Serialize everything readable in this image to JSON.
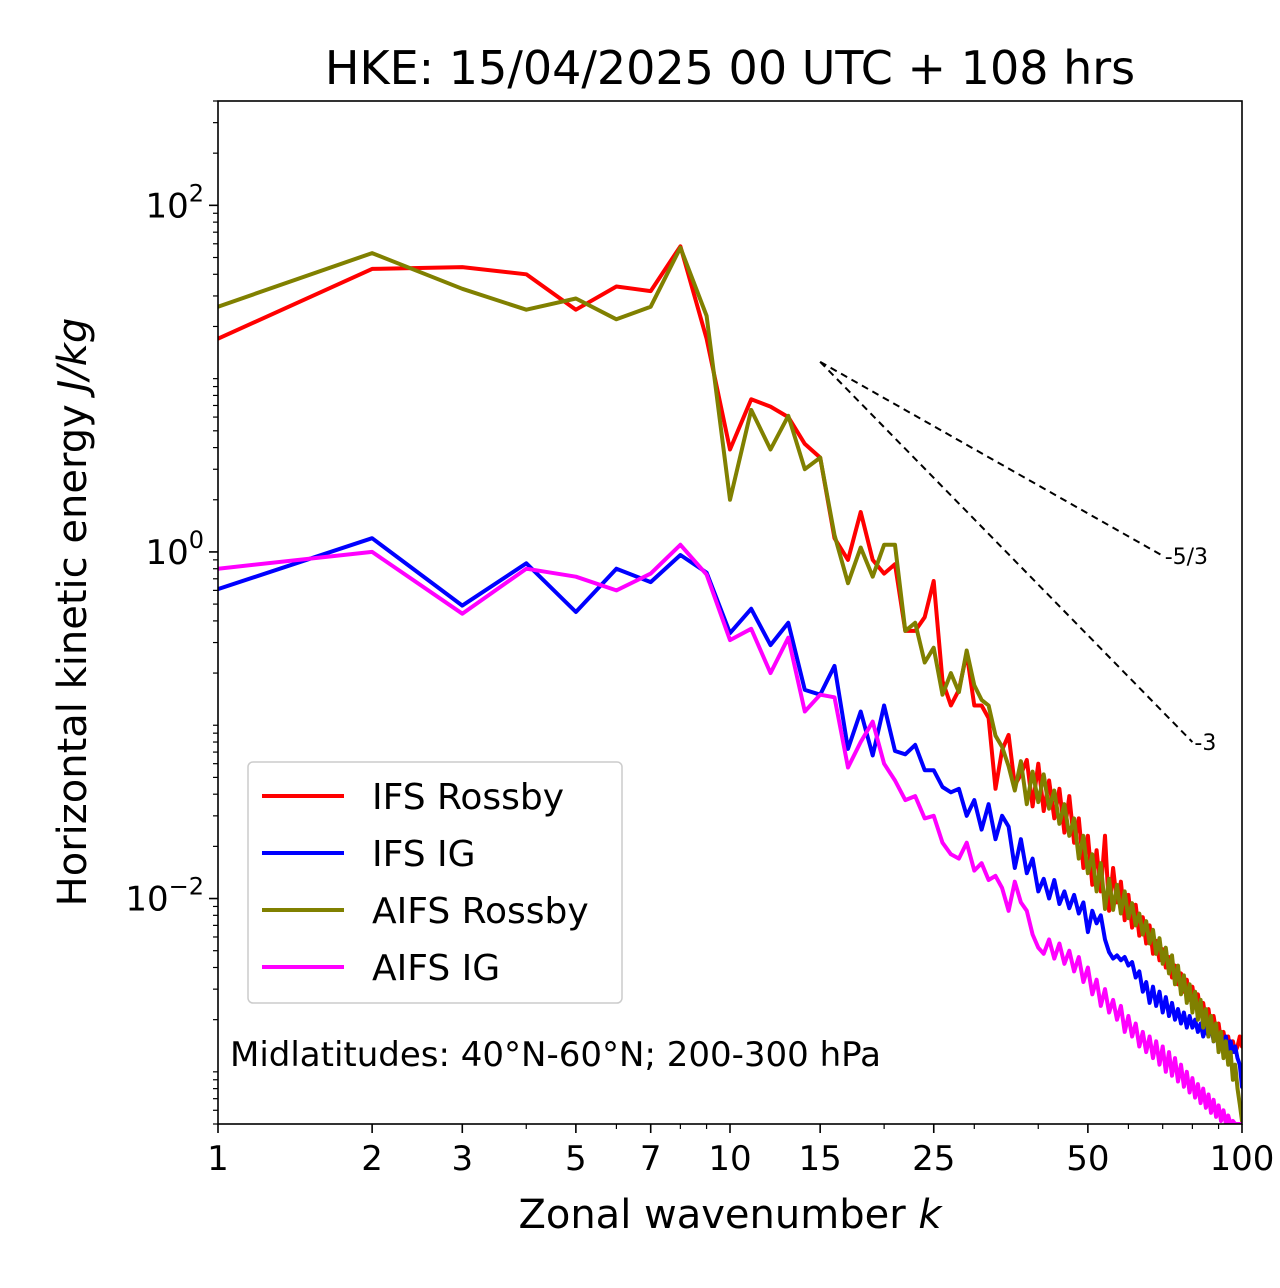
{
  "chart_data": {
    "type": "line",
    "title": "HKE: 15/04/2025 00 UTC + 108 hrs",
    "xlabel": "Zonal wavenumber k",
    "xlabel_prefix": "Zonal wavenumber ",
    "xlabel_var": "k",
    "ylabel": "Horizontal kinetic energy J/kg",
    "ylabel_prefix": "Horizontal kinetic energy ",
    "ylabel_unit": "J/kg",
    "xscale": "log",
    "yscale": "log",
    "xlim": [
      1,
      100
    ],
    "ylim": [
      0.0005,
      400
    ],
    "xticks": [
      1,
      2,
      3,
      5,
      7,
      10,
      15,
      25,
      50,
      100
    ],
    "xtick_labels": [
      "1",
      "2",
      "3",
      "5",
      "7",
      "10",
      "15",
      "25",
      "50",
      "100"
    ],
    "yticks": [
      0.01,
      1,
      100
    ],
    "ytick_labels": [
      {
        "base": "10",
        "exp": "−2"
      },
      {
        "base": "10",
        "exp": "0"
      },
      {
        "base": "10",
        "exp": "2"
      }
    ],
    "grid": false,
    "legend_position": "lower-left",
    "annotation": "Midlatitudes: 40°N-60°N; 200-300 hPa",
    "reference_lines": [
      {
        "label": "-5/3",
        "x": [
          15,
          70
        ],
        "y": [
          12.5,
          0.95
        ]
      },
      {
        "label": "-3",
        "x": [
          15,
          80
        ],
        "y": [
          12.5,
          0.08
        ]
      }
    ],
    "series": [
      {
        "name": "IFS Rossby",
        "color": "#ff0000",
        "x": [
          1,
          2,
          3,
          4,
          5,
          6,
          7,
          8,
          9,
          10,
          11,
          12,
          13,
          14,
          15,
          16,
          17,
          18,
          19,
          20,
          21,
          22,
          23,
          24,
          25,
          26,
          27,
          28,
          29,
          30,
          31,
          32,
          33,
          34,
          35,
          36,
          37,
          38,
          39,
          40,
          41,
          42,
          43,
          44,
          45,
          46,
          47,
          48,
          49,
          50,
          51,
          52,
          53,
          54,
          55,
          56,
          57,
          58,
          59,
          60,
          61,
          62,
          63,
          64,
          65,
          66,
          67,
          68,
          69,
          70,
          71,
          72,
          73,
          74,
          75,
          76,
          77,
          78,
          79,
          80,
          81,
          82,
          83,
          84,
          85,
          86,
          87,
          88,
          89,
          90,
          91,
          92,
          93,
          94,
          95,
          96,
          97,
          98,
          99,
          100
        ],
        "y": [
          17,
          43,
          44,
          40,
          25,
          34,
          32,
          58,
          17,
          3.9,
          7.6,
          6.9,
          6.0,
          4.2,
          3.5,
          1.2,
          0.9,
          1.7,
          0.9,
          0.75,
          0.85,
          0.35,
          0.35,
          0.42,
          0.68,
          0.18,
          0.13,
          0.16,
          0.26,
          0.13,
          0.13,
          0.11,
          0.043,
          0.072,
          0.088,
          0.045,
          0.052,
          0.063,
          0.034,
          0.06,
          0.032,
          0.048,
          0.029,
          0.043,
          0.024,
          0.039,
          0.021,
          0.029,
          0.015,
          0.023,
          0.012,
          0.019,
          0.011,
          0.023,
          0.0085,
          0.015,
          0.0095,
          0.0125,
          0.0075,
          0.0105,
          0.0068,
          0.0092,
          0.0061,
          0.0078,
          0.0055,
          0.007,
          0.0048,
          0.0057,
          0.0044,
          0.0051,
          0.004,
          0.0046,
          0.0035,
          0.0041,
          0.0032,
          0.0037,
          0.0029,
          0.0034,
          0.0026,
          0.0031,
          0.0024,
          0.0028,
          0.0022,
          0.0025,
          0.002,
          0.0023,
          0.0018,
          0.0021,
          0.0017,
          0.0019,
          0.0015,
          0.0017,
          0.0014,
          0.0016,
          0.0013,
          0.0015,
          0.0013,
          0.0014,
          0.0016,
          0.0014
        ]
      },
      {
        "name": "IFS IG",
        "color": "#0000ff",
        "x": [
          1,
          2,
          3,
          4,
          5,
          6,
          7,
          8,
          9,
          10,
          11,
          12,
          13,
          14,
          15,
          16,
          17,
          18,
          19,
          20,
          21,
          22,
          23,
          24,
          25,
          26,
          27,
          28,
          29,
          30,
          31,
          32,
          33,
          34,
          35,
          36,
          37,
          38,
          39,
          40,
          41,
          42,
          43,
          44,
          45,
          46,
          47,
          48,
          49,
          50,
          51,
          52,
          53,
          54,
          55,
          56,
          57,
          58,
          59,
          60,
          61,
          62,
          63,
          64,
          65,
          66,
          67,
          68,
          69,
          70,
          71,
          72,
          73,
          74,
          75,
          76,
          77,
          78,
          79,
          80,
          81,
          82,
          83,
          84,
          85,
          86,
          87,
          88,
          89,
          90,
          91,
          92,
          93,
          94,
          95,
          96,
          97,
          98,
          99,
          100
        ],
        "y": [
          0.61,
          1.2,
          0.49,
          0.86,
          0.45,
          0.8,
          0.67,
          0.96,
          0.76,
          0.34,
          0.47,
          0.29,
          0.39,
          0.16,
          0.15,
          0.22,
          0.073,
          0.12,
          0.067,
          0.13,
          0.071,
          0.068,
          0.077,
          0.055,
          0.055,
          0.044,
          0.041,
          0.043,
          0.03,
          0.037,
          0.025,
          0.035,
          0.022,
          0.03,
          0.026,
          0.015,
          0.022,
          0.014,
          0.017,
          0.011,
          0.013,
          0.01,
          0.0128,
          0.0093,
          0.011,
          0.0088,
          0.0105,
          0.0082,
          0.0095,
          0.0064,
          0.0085,
          0.0072,
          0.008,
          0.0058,
          0.0049,
          0.0045,
          0.0047,
          0.0044,
          0.0046,
          0.0041,
          0.0043,
          0.0035,
          0.0038,
          0.0029,
          0.0033,
          0.0025,
          0.0031,
          0.0024,
          0.0029,
          0.0022,
          0.0027,
          0.0021,
          0.0025,
          0.002,
          0.0023,
          0.0019,
          0.0022,
          0.0018,
          0.0021,
          0.0018,
          0.002,
          0.0017,
          0.0019,
          0.0016,
          0.0018,
          0.0016,
          0.0019,
          0.0015,
          0.0017,
          0.0014,
          0.0016,
          0.0014,
          0.0016,
          0.0013,
          0.0015,
          0.0013,
          0.0014,
          0.0012,
          0.0011,
          0.00082
        ]
      },
      {
        "name": "AIFS Rossby",
        "color": "#808000",
        "x": [
          1,
          2,
          3,
          4,
          5,
          6,
          7,
          8,
          9,
          10,
          11,
          12,
          13,
          14,
          15,
          16,
          17,
          18,
          19,
          20,
          21,
          22,
          23,
          24,
          25,
          26,
          27,
          28,
          29,
          30,
          31,
          32,
          33,
          34,
          35,
          36,
          37,
          38,
          39,
          40,
          41,
          42,
          43,
          44,
          45,
          46,
          47,
          48,
          49,
          50,
          51,
          52,
          53,
          54,
          55,
          56,
          57,
          58,
          59,
          60,
          61,
          62,
          63,
          64,
          65,
          66,
          67,
          68,
          69,
          70,
          71,
          72,
          73,
          74,
          75,
          76,
          77,
          78,
          79,
          80,
          81,
          82,
          83,
          84,
          85,
          86,
          87,
          88,
          89,
          90,
          91,
          92,
          93,
          94,
          95,
          96,
          97,
          98,
          99,
          100
        ],
        "y": [
          26,
          53,
          33,
          25,
          29,
          22,
          26,
          57,
          23,
          2.0,
          6.6,
          3.9,
          6.1,
          3.0,
          3.5,
          1.25,
          0.66,
          1.06,
          0.72,
          1.1,
          1.1,
          0.35,
          0.39,
          0.23,
          0.28,
          0.15,
          0.2,
          0.155,
          0.27,
          0.17,
          0.14,
          0.13,
          0.087,
          0.075,
          0.058,
          0.042,
          0.062,
          0.035,
          0.054,
          0.036,
          0.052,
          0.033,
          0.042,
          0.027,
          0.035,
          0.023,
          0.029,
          0.017,
          0.023,
          0.014,
          0.018,
          0.011,
          0.016,
          0.0087,
          0.013,
          0.0086,
          0.012,
          0.0082,
          0.011,
          0.0077,
          0.0094,
          0.007,
          0.0082,
          0.0062,
          0.0074,
          0.0055,
          0.0066,
          0.0048,
          0.0059,
          0.0042,
          0.0052,
          0.0037,
          0.0047,
          0.0032,
          0.0041,
          0.0028,
          0.0036,
          0.0025,
          0.0032,
          0.0022,
          0.0029,
          0.002,
          0.0026,
          0.0018,
          0.0023,
          0.0016,
          0.0021,
          0.0015,
          0.0019,
          0.0013,
          0.0017,
          0.0012,
          0.0015,
          0.0011,
          0.0013,
          0.0009,
          0.0011,
          0.0008,
          0.00065,
          0.00052
        ]
      },
      {
        "name": "AIFS IG",
        "color": "#ff00ff",
        "x": [
          1,
          2,
          3,
          4,
          5,
          6,
          7,
          8,
          9,
          10,
          11,
          12,
          13,
          14,
          15,
          16,
          17,
          18,
          19,
          20,
          21,
          22,
          23,
          24,
          25,
          26,
          27,
          28,
          29,
          30,
          31,
          32,
          33,
          34,
          35,
          36,
          37,
          38,
          39,
          40,
          41,
          42,
          43,
          44,
          45,
          46,
          47,
          48,
          49,
          50,
          51,
          52,
          53,
          54,
          55,
          56,
          57,
          58,
          59,
          60,
          61,
          62,
          63,
          64,
          65,
          66,
          67,
          68,
          69,
          70,
          71,
          72,
          73,
          74,
          75,
          76,
          77,
          78,
          79,
          80,
          81,
          82,
          83,
          84,
          85,
          86,
          87,
          88,
          89,
          90,
          91,
          92,
          93,
          94,
          95,
          96,
          97,
          98,
          99,
          100
        ],
        "y": [
          0.8,
          1.0,
          0.44,
          0.8,
          0.72,
          0.6,
          0.75,
          1.1,
          0.74,
          0.31,
          0.36,
          0.2,
          0.32,
          0.12,
          0.15,
          0.145,
          0.057,
          0.08,
          0.105,
          0.06,
          0.048,
          0.037,
          0.039,
          0.029,
          0.03,
          0.021,
          0.018,
          0.017,
          0.021,
          0.0145,
          0.016,
          0.0128,
          0.0135,
          0.0115,
          0.0085,
          0.0125,
          0.0095,
          0.0085,
          0.0062,
          0.0052,
          0.0048,
          0.0058,
          0.0045,
          0.0055,
          0.0042,
          0.005,
          0.0038,
          0.0046,
          0.0033,
          0.004,
          0.0028,
          0.0034,
          0.0024,
          0.003,
          0.0022,
          0.0026,
          0.002,
          0.0024,
          0.0017,
          0.0021,
          0.0016,
          0.0019,
          0.0014,
          0.0017,
          0.0013,
          0.0016,
          0.0012,
          0.0015,
          0.0011,
          0.0014,
          0.001,
          0.0013,
          0.00095,
          0.0012,
          0.00088,
          0.0011,
          0.00082,
          0.001,
          0.00076,
          0.00092,
          0.00071,
          0.00085,
          0.00066,
          0.0008,
          0.00062,
          0.00074,
          0.00058,
          0.00069,
          0.00055,
          0.00064,
          0.00052,
          0.0006,
          0.0005,
          0.00056,
          0.0005,
          0.00052,
          0.0005,
          0.0005,
          0.0005,
          0.0005
        ]
      }
    ]
  }
}
